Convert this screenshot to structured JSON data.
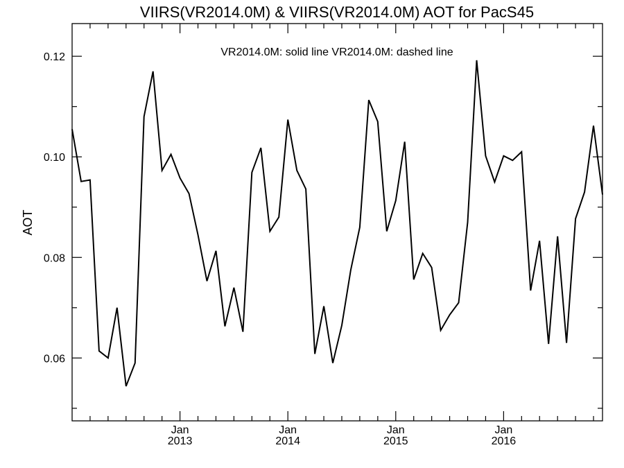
{
  "chart_data": {
    "type": "line",
    "title": "VIIRS(VR2014.0M) & VIIRS(VR2014.0M)  AOT for PacS45",
    "annotation": "VR2014.0M: solid line   VR2014.0M: dashed line",
    "xlabel": "",
    "ylabel": "AOT",
    "ylim": [
      0.0475,
      0.1265
    ],
    "xlim": [
      "2012-01-01",
      "2016-12-01"
    ],
    "grid": false,
    "y_ticks": [
      {
        "value": 0.06,
        "label": "0.06"
      },
      {
        "value": 0.08,
        "label": "0.08"
      },
      {
        "value": 0.1,
        "label": "0.10"
      },
      {
        "value": 0.12,
        "label": "0.12"
      }
    ],
    "x_ticks": [
      {
        "value": "2013-01",
        "label_month": "Jan",
        "label_year": "2013"
      },
      {
        "value": "2014-01",
        "label_month": "Jan",
        "label_year": "2014"
      },
      {
        "value": "2015-01",
        "label_month": "Jan",
        "label_year": "2015"
      },
      {
        "value": "2016-01",
        "label_month": "Jan",
        "label_year": "2016"
      }
    ],
    "series": [
      {
        "style": "solid",
        "x": [
          "2012-01",
          "2012-02",
          "2012-03",
          "2012-04",
          "2012-05",
          "2012-06",
          "2012-07",
          "2012-08",
          "2012-09",
          "2012-10",
          "2012-11",
          "2012-12",
          "2013-01",
          "2013-02",
          "2013-03",
          "2013-04",
          "2013-05",
          "2013-06",
          "2013-07",
          "2013-08",
          "2013-09",
          "2013-10",
          "2013-11",
          "2013-12",
          "2014-01",
          "2014-02",
          "2014-03",
          "2014-04",
          "2014-05",
          "2014-06",
          "2014-07",
          "2014-08",
          "2014-09",
          "2014-10",
          "2014-11",
          "2014-12",
          "2015-01",
          "2015-02",
          "2015-03",
          "2015-04",
          "2015-05",
          "2015-06",
          "2015-07",
          "2015-08",
          "2015-09",
          "2015-10",
          "2015-11",
          "2015-12",
          "2016-01",
          "2016-02",
          "2016-03",
          "2016-04",
          "2016-05",
          "2016-06",
          "2016-07",
          "2016-08",
          "2016-09",
          "2016-10",
          "2016-11",
          "2016-12"
        ],
        "values": [
          0.1055,
          0.0951,
          0.0954,
          0.0614,
          0.06,
          0.07,
          0.0544,
          0.059,
          0.108,
          0.117,
          0.0973,
          0.1005,
          0.0958,
          0.0927,
          0.0845,
          0.0753,
          0.0813,
          0.0663,
          0.074,
          0.0652,
          0.0969,
          0.1018,
          0.0852,
          0.088,
          0.1074,
          0.0973,
          0.0936,
          0.0608,
          0.0703,
          0.059,
          0.0665,
          0.0775,
          0.086,
          0.1113,
          0.107,
          0.0852,
          0.0913,
          0.103,
          0.0756,
          0.0808,
          0.078,
          0.0655,
          0.0686,
          0.071,
          0.087,
          0.1192,
          0.1002,
          0.095,
          0.1002,
          0.0993,
          0.101,
          0.0734,
          0.0833,
          0.0628,
          0.0842,
          0.063,
          0.0877,
          0.093,
          0.1062,
          0.0925
        ]
      }
    ]
  }
}
